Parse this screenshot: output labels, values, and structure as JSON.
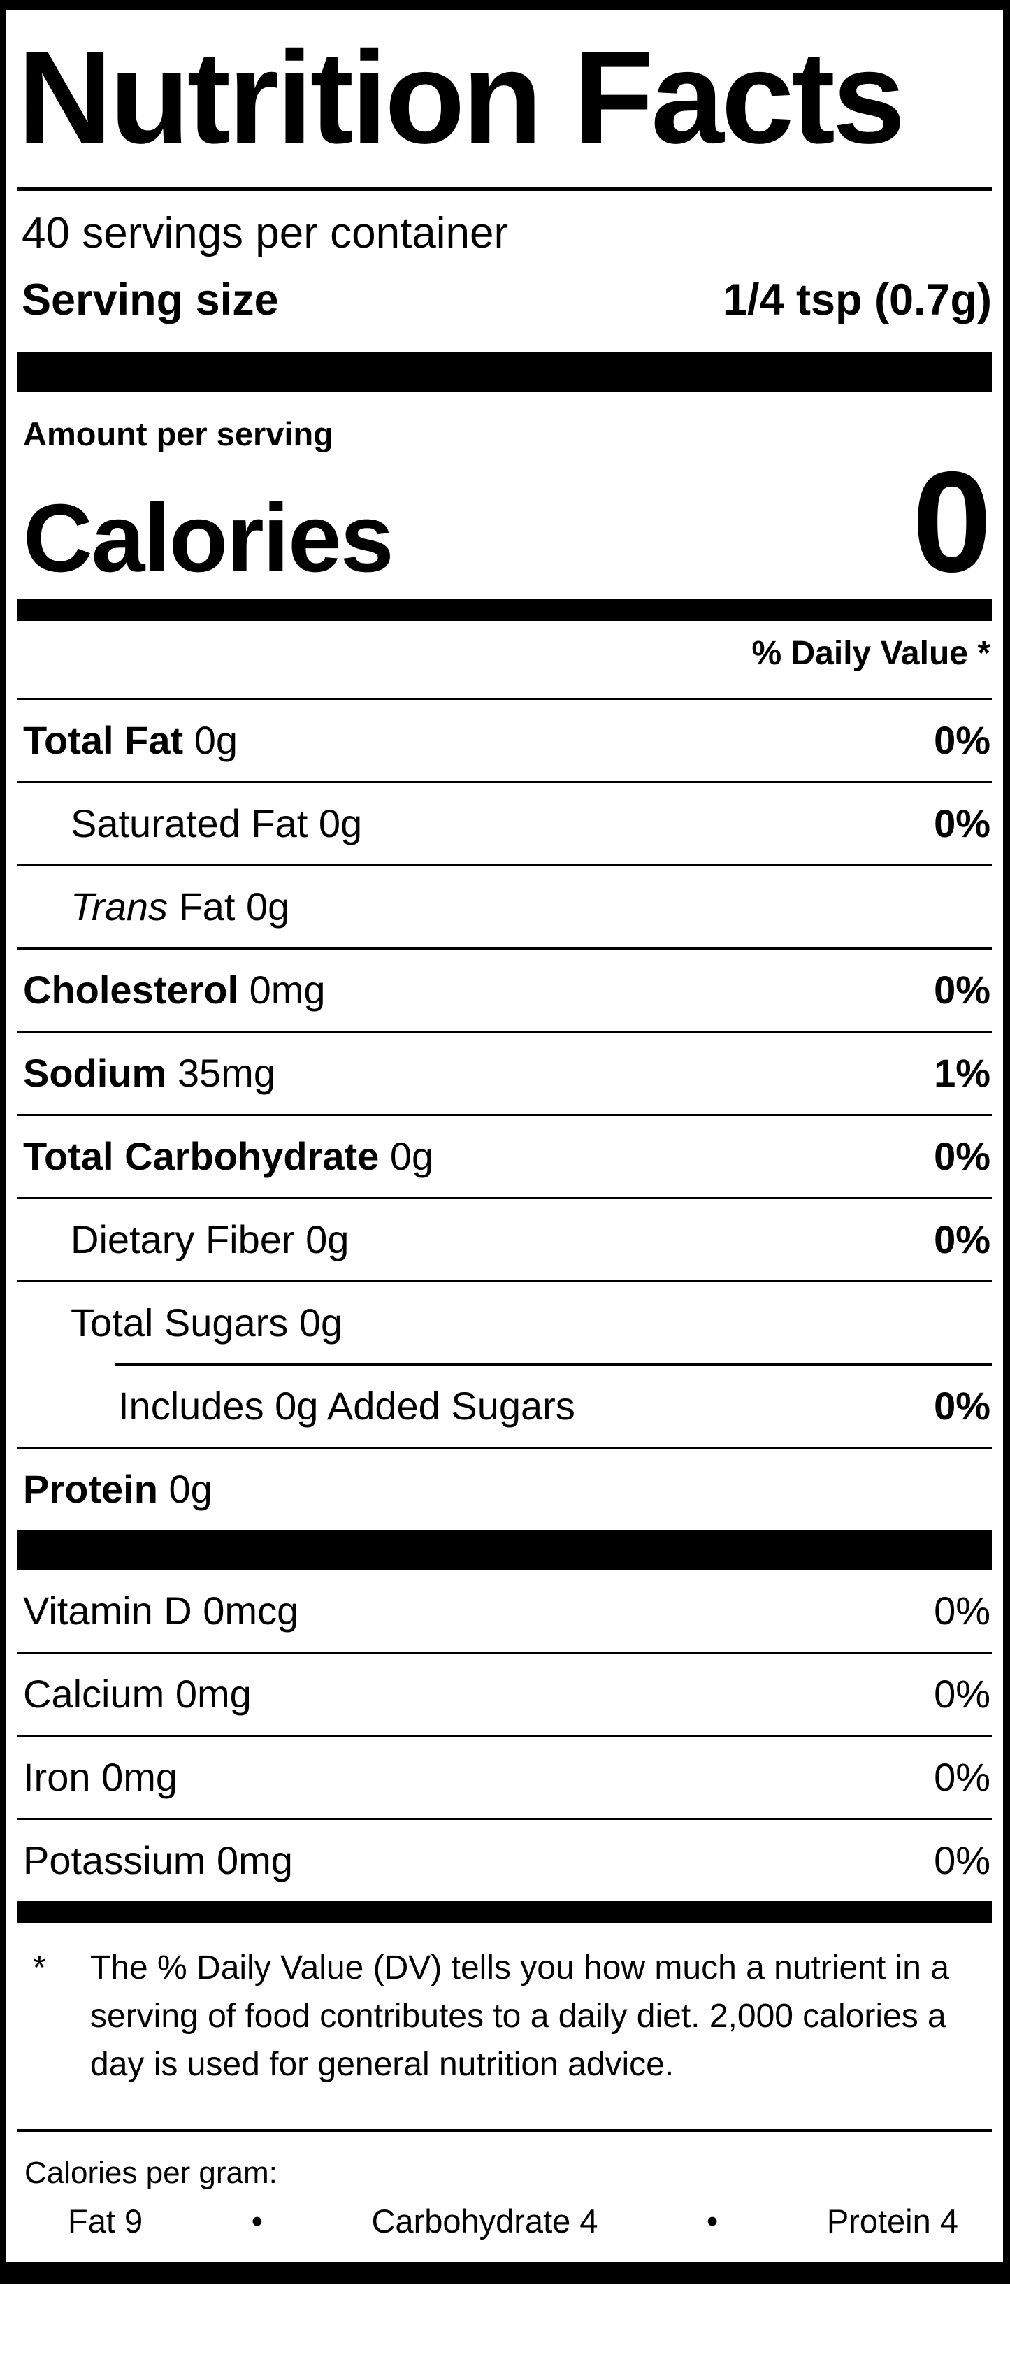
{
  "label": {
    "title": "Nutrition Facts",
    "servings_per_container": "40 servings per container",
    "serving_size_label": "Serving size",
    "serving_size_value": "1/4 tsp (0.7g)",
    "amount_per_serving": "Amount per serving",
    "calories_label": "Calories",
    "calories_value": "0",
    "daily_value_header": "% Daily Value *",
    "rows": [
      {
        "name": "Total Fat",
        "amount": "0g",
        "dv": "0%"
      },
      {
        "name": "Saturated Fat",
        "amount": "0g",
        "dv": "0%"
      },
      {
        "name": "Trans",
        "amount": "Fat 0g",
        "dv": ""
      },
      {
        "name": "Cholesterol",
        "amount": "0mg",
        "dv": "0%"
      },
      {
        "name": "Sodium",
        "amount": "35mg",
        "dv": "1%"
      },
      {
        "name": "Total Carbohydrate",
        "amount": "0g",
        "dv": "0%"
      },
      {
        "name": "Dietary Fiber",
        "amount": "0g",
        "dv": "0%"
      },
      {
        "name": "Total Sugars",
        "amount": "0g",
        "dv": ""
      },
      {
        "name": "Includes 0g Added Sugars",
        "amount": "",
        "dv": "0%"
      },
      {
        "name": "Protein",
        "amount": "0g",
        "dv": ""
      },
      {
        "name": "Vitamin D",
        "amount": "0mcg",
        "dv": "0%"
      },
      {
        "name": "Calcium",
        "amount": "0mg",
        "dv": "0%"
      },
      {
        "name": "Iron",
        "amount": "0mg",
        "dv": "0%"
      },
      {
        "name": "Potassium",
        "amount": "0mg",
        "dv": "0%"
      }
    ],
    "footnote_marker": "*",
    "footnote": "The % Daily Value (DV) tells you how much a nutrient in a serving of food contributes to a daily diet. 2,000 calories a day is used for general nutrition advice.",
    "calories_per_gram_label": "Calories per gram:",
    "cpg_fat": "Fat 9",
    "cpg_carb": "Carbohydrate 4",
    "cpg_protein": "Protein 4",
    "bullet": "•",
    "colors": {
      "ink": "#000000",
      "paper": "#ffffff"
    }
  }
}
